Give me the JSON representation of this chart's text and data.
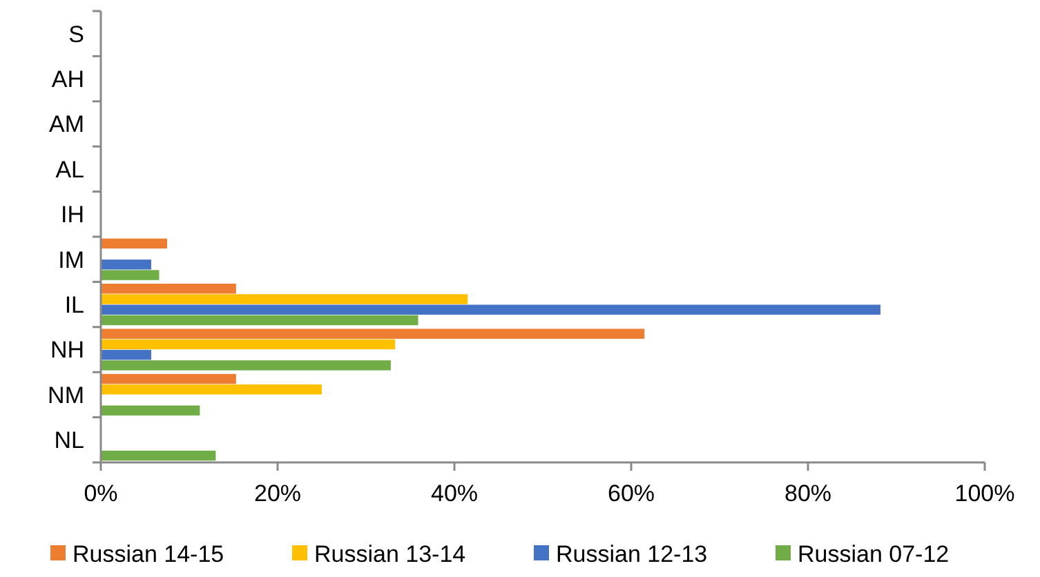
{
  "chart_data": {
    "type": "bar",
    "orientation": "horizontal",
    "categories": [
      "S",
      "AH",
      "AM",
      "AL",
      "IH",
      "IM",
      "IL",
      "NH",
      "NM",
      "NL"
    ],
    "series": [
      {
        "name": "Russian 14-15",
        "color": "#ed7d31",
        "values": [
          null,
          null,
          null,
          null,
          null,
          7.5,
          15.3,
          61.5,
          15.3,
          null
        ]
      },
      {
        "name": "Russian 13-14",
        "color": "#ffc000",
        "values": [
          null,
          null,
          null,
          null,
          null,
          null,
          41.5,
          33.3,
          25,
          null
        ]
      },
      {
        "name": "Russian 12-13",
        "color": "#4472c4",
        "values": [
          null,
          null,
          null,
          null,
          null,
          5.7,
          88.2,
          5.7,
          null,
          null
        ]
      },
      {
        "name": "Russian 07-12",
        "color": "#70ad47",
        "values": [
          null,
          null,
          null,
          null,
          null,
          6.6,
          35.9,
          32.8,
          11.2,
          13
        ]
      }
    ],
    "xlim": [
      0,
      100
    ],
    "xticks": [
      {
        "value": 0,
        "label": "0%"
      },
      {
        "value": 20,
        "label": "20%"
      },
      {
        "value": 40,
        "label": "40%"
      },
      {
        "value": 60,
        "label": "60%"
      },
      {
        "value": 80,
        "label": "80%"
      },
      {
        "value": 100,
        "label": "100%"
      }
    ],
    "grid": false,
    "legend": "bottom"
  }
}
